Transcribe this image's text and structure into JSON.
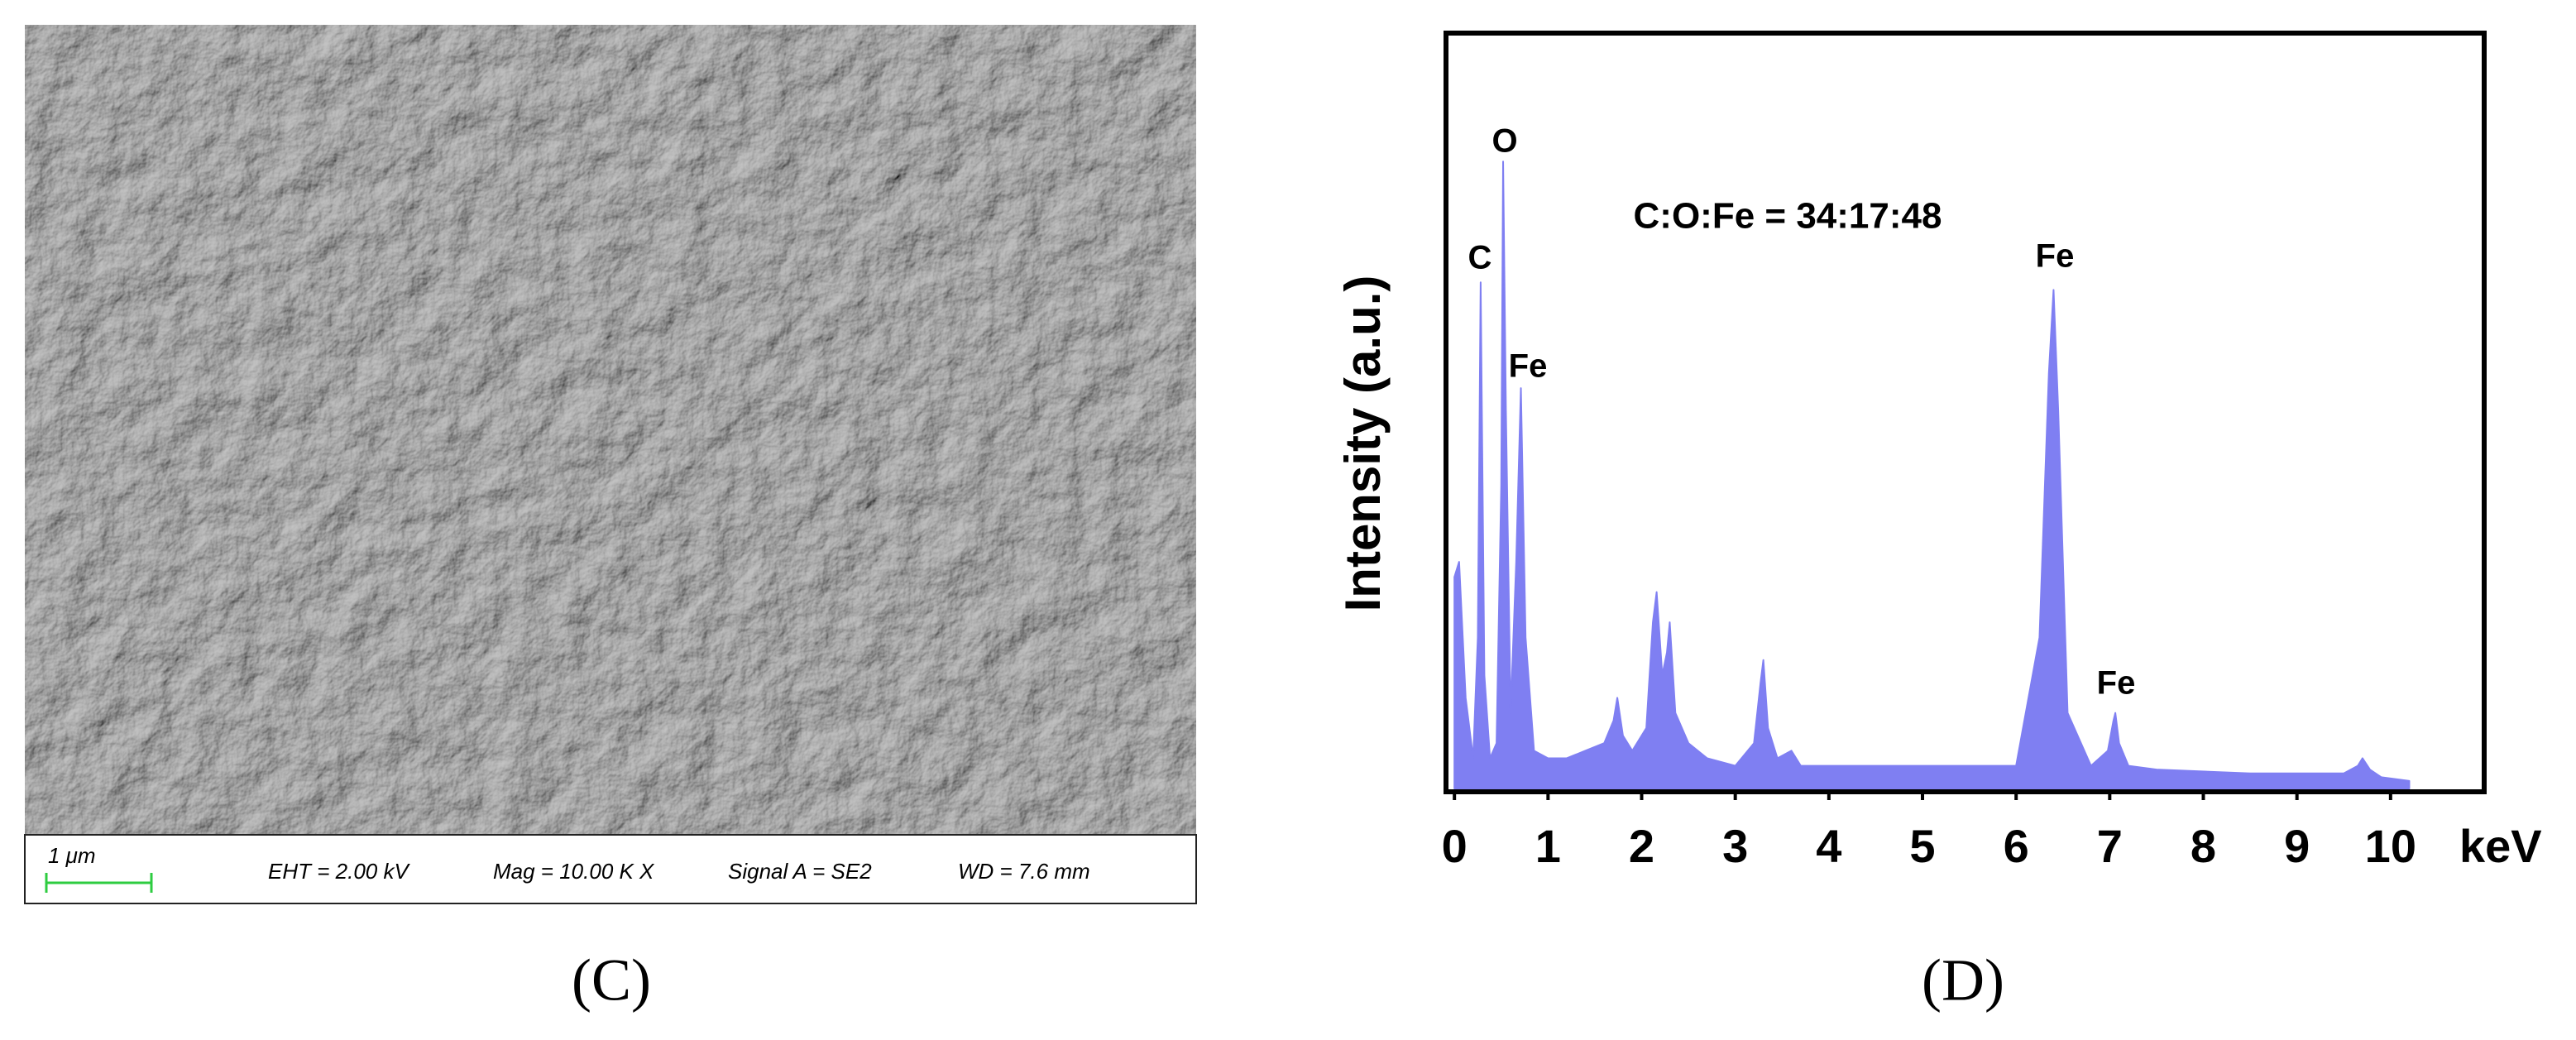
{
  "sem_panel": {
    "scale_bar": "1 μm",
    "info": [
      "EHT = 2.00 kV",
      "Mag =  10.00 K X",
      "Signal A = SE2",
      "WD =  7.6 mm"
    ],
    "panel_label": "(C)"
  },
  "chart_data": {
    "type": "area",
    "panel_label": "(D)",
    "x_label": "keV",
    "y_label": "Intensity (a.u.)",
    "annotations": [
      "O",
      "C",
      "Fe",
      "C:O:Fe = 34:17:48",
      "Fe",
      "Fe"
    ],
    "x": [
      0,
      0.05,
      0.12,
      0.2,
      0.25,
      0.28,
      0.32,
      0.38,
      0.45,
      0.5,
      0.52,
      0.55,
      0.6,
      0.66,
      0.71,
      0.76,
      0.85,
      1.0,
      1.2,
      1.4,
      1.6,
      1.7,
      1.74,
      1.8,
      1.9,
      2.05,
      2.12,
      2.16,
      2.22,
      2.27,
      2.3,
      2.36,
      2.5,
      2.7,
      3.0,
      3.2,
      3.27,
      3.3,
      3.35,
      3.45,
      3.6,
      3.7,
      4.0,
      5.0,
      6.0,
      6.25,
      6.35,
      6.4,
      6.45,
      6.55,
      6.8,
      6.98,
      7.04,
      7.06,
      7.1,
      7.2,
      7.5,
      8.5,
      9.5,
      9.65,
      9.7,
      9.78,
      9.9,
      10.2
    ],
    "values": [
      28,
      30,
      12,
      4,
      20,
      67,
      15,
      4,
      6,
      40,
      83,
      50,
      10,
      30,
      53,
      20,
      5,
      4,
      4,
      5,
      6,
      9,
      12,
      7,
      5,
      8,
      22,
      26,
      15,
      18,
      22,
      10,
      6,
      4,
      3,
      6,
      14,
      17,
      8,
      4,
      5,
      3,
      3,
      3,
      3,
      20,
      55,
      66,
      50,
      10,
      3,
      5,
      9,
      10,
      6,
      3,
      2.5,
      2,
      2,
      3,
      4,
      2.5,
      1.5,
      1
    ],
    "color": "#7f7ff2",
    "xlim": [
      -0.09,
      11
    ],
    "xticks": [
      0,
      1,
      2,
      3,
      4,
      5,
      6,
      7,
      8,
      9,
      10
    ],
    "ylim": [
      0,
      100
    ]
  }
}
